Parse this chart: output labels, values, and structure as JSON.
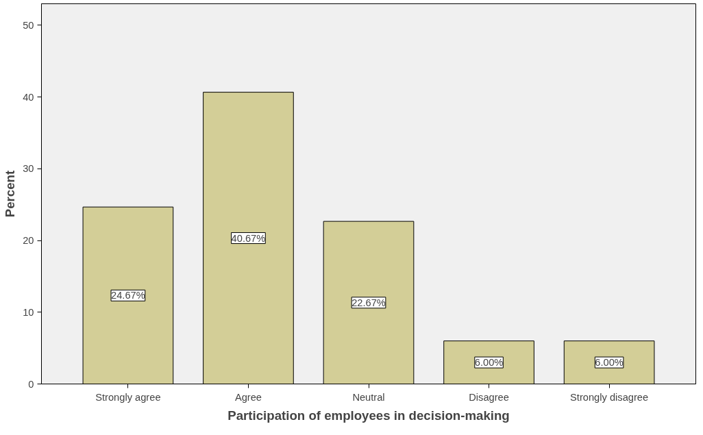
{
  "chart_data": {
    "type": "bar",
    "xlabel": "Participation of employees in decision-making",
    "ylabel": "Percent",
    "categories": [
      "Strongly agree",
      "Agree",
      "Neutral",
      "Disagree",
      "Strongly disagree"
    ],
    "values": [
      24.67,
      40.67,
      22.67,
      6.0,
      6.0
    ],
    "value_labels": [
      "24.67%",
      "40.67%",
      "22.67%",
      "6.00%",
      "6.00%"
    ],
    "color": "#d3ce97",
    "ylim": [
      0,
      53
    ],
    "yticks": [
      0,
      10,
      20,
      30,
      40,
      50
    ],
    "grid": false
  }
}
